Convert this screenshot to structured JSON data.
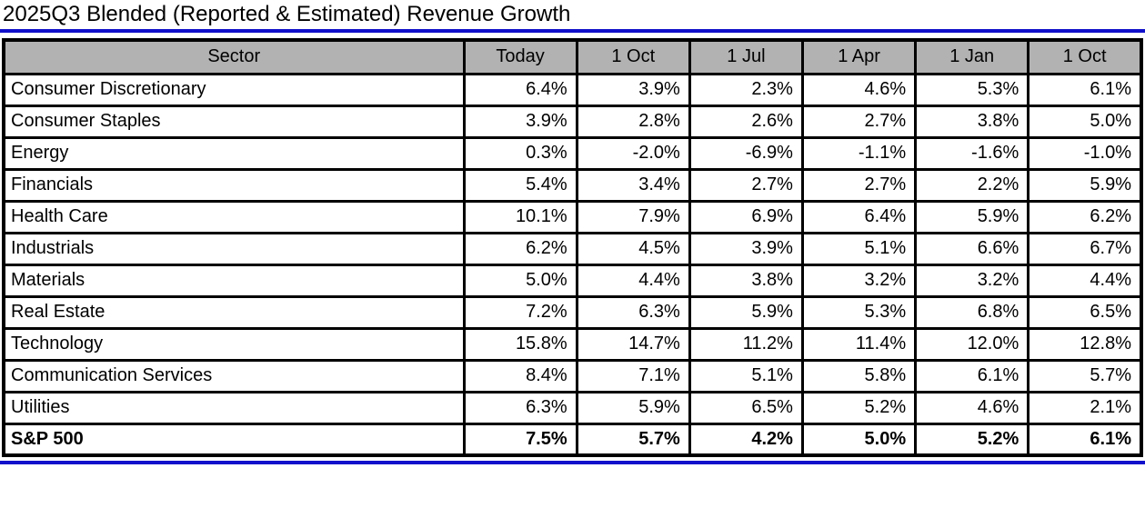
{
  "title": "2025Q3 Blended (Reported & Estimated) Revenue Growth",
  "colors": {
    "accent_blue": "#1111cb",
    "header_bg": "#b2b2b2",
    "border": "#000000",
    "text": "#000000"
  },
  "chart_data": {
    "type": "table",
    "title": "2025Q3 Blended (Reported & Estimated) Revenue Growth",
    "columns": [
      "Sector",
      "Today",
      "1 Oct",
      "1 Jul",
      "1 Apr",
      "1 Jan",
      "1 Oct"
    ],
    "rows": [
      {
        "sector": "Consumer Discretionary",
        "values": [
          "6.4%",
          "3.9%",
          "2.3%",
          "4.6%",
          "5.3%",
          "6.1%"
        ],
        "bold": false
      },
      {
        "sector": "Consumer Staples",
        "values": [
          "3.9%",
          "2.8%",
          "2.6%",
          "2.7%",
          "3.8%",
          "5.0%"
        ],
        "bold": false
      },
      {
        "sector": "Energy",
        "values": [
          "0.3%",
          "-2.0%",
          "-6.9%",
          "-1.1%",
          "-1.6%",
          "-1.0%"
        ],
        "bold": false
      },
      {
        "sector": "Financials",
        "values": [
          "5.4%",
          "3.4%",
          "2.7%",
          "2.7%",
          "2.2%",
          "5.9%"
        ],
        "bold": false
      },
      {
        "sector": "Health Care",
        "values": [
          "10.1%",
          "7.9%",
          "6.9%",
          "6.4%",
          "5.9%",
          "6.2%"
        ],
        "bold": false
      },
      {
        "sector": "Industrials",
        "values": [
          "6.2%",
          "4.5%",
          "3.9%",
          "5.1%",
          "6.6%",
          "6.7%"
        ],
        "bold": false
      },
      {
        "sector": "Materials",
        "values": [
          "5.0%",
          "4.4%",
          "3.8%",
          "3.2%",
          "3.2%",
          "4.4%"
        ],
        "bold": false
      },
      {
        "sector": "Real Estate",
        "values": [
          "7.2%",
          "6.3%",
          "5.9%",
          "5.3%",
          "6.8%",
          "6.5%"
        ],
        "bold": false
      },
      {
        "sector": "Technology",
        "values": [
          "15.8%",
          "14.7%",
          "11.2%",
          "11.4%",
          "12.0%",
          "12.8%"
        ],
        "bold": false
      },
      {
        "sector": "Communication Services",
        "values": [
          "8.4%",
          "7.1%",
          "5.1%",
          "5.8%",
          "6.1%",
          "5.7%"
        ],
        "bold": false
      },
      {
        "sector": "Utilities",
        "values": [
          "6.3%",
          "5.9%",
          "6.5%",
          "5.2%",
          "4.6%",
          "2.1%"
        ],
        "bold": false
      },
      {
        "sector": "S&P 500",
        "values": [
          "7.5%",
          "5.7%",
          "4.2%",
          "5.0%",
          "5.2%",
          "6.1%"
        ],
        "bold": true
      }
    ]
  }
}
